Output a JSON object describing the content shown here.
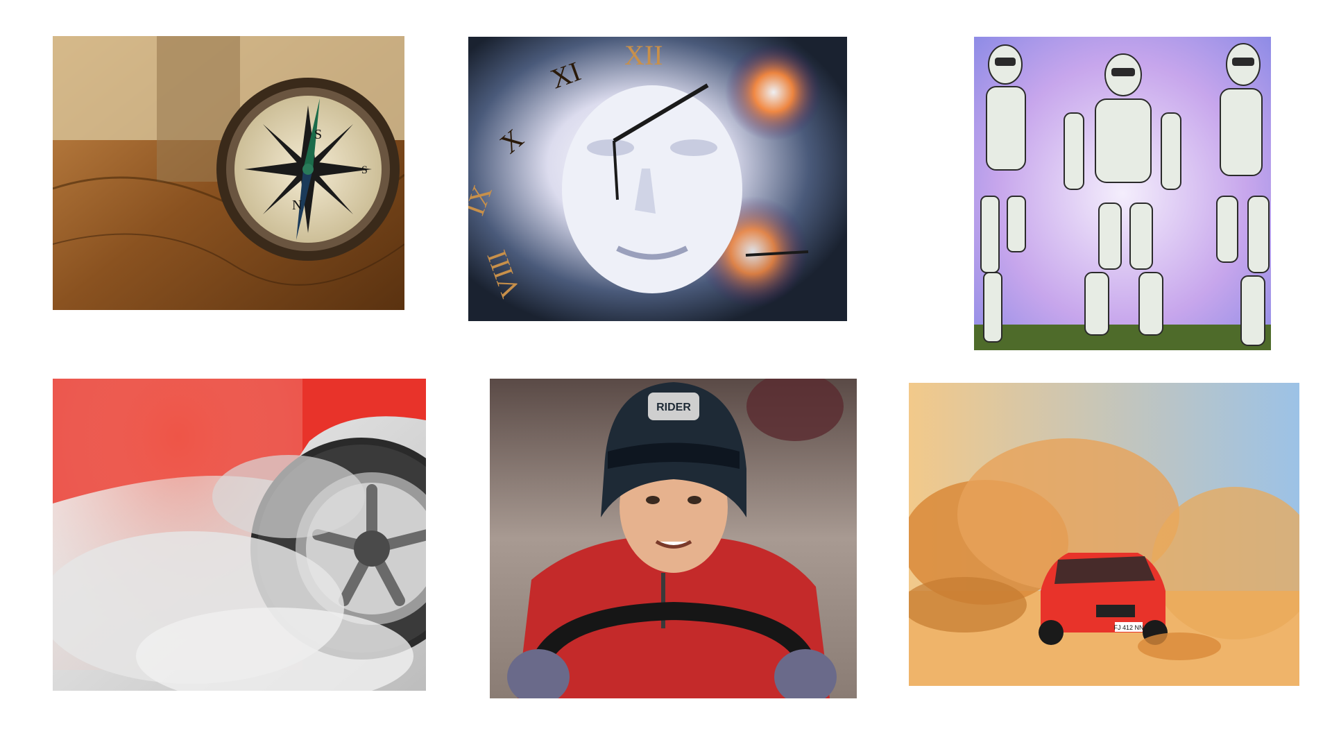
{
  "gallery": {
    "tiles": [
      {
        "id": "compass-map",
        "icon": "compass-icon",
        "compass_letters": [
          "S",
          "N",
          "S"
        ]
      },
      {
        "id": "surreal-clock-face",
        "icon": "clock-icon",
        "numerals": [
          "XII",
          "XI",
          "X",
          "IX",
          "VIII"
        ]
      },
      {
        "id": "robots-walking",
        "icon": "robot-icon"
      },
      {
        "id": "car-burnout-smoke",
        "icon": "wheel-icon"
      },
      {
        "id": "boy-go-kart",
        "icon": "helmet-icon",
        "helmet_text": "RIDER"
      },
      {
        "id": "red-car-desert-sand",
        "icon": "car-icon",
        "plate_text": "FJ 412 NN"
      }
    ]
  },
  "colors": {
    "background": "#ffffff",
    "map_brown": "#7a4a1e",
    "robot_sky": "#b8a6f0",
    "car_red": "#e8332a",
    "sand": "#e9a95a"
  }
}
